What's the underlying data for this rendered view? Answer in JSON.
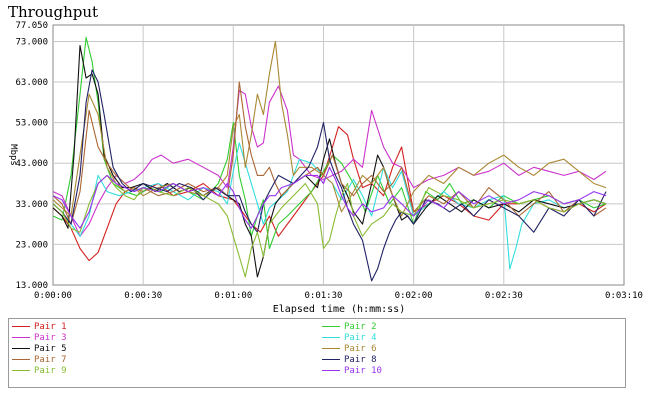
{
  "chart_data": {
    "type": "line",
    "title": "Throughput",
    "xlabel": "Elapsed time (h:mm:ss)",
    "ylabel": "Mbps",
    "xlim": [
      0,
      190
    ],
    "ylim": [
      13,
      77.05
    ],
    "yticks": [
      13.0,
      23.0,
      33.0,
      43.0,
      53.0,
      63.0,
      73.0,
      77.05
    ],
    "ytick_labels": [
      "13.000",
      "23.000",
      "33.000",
      "43.000",
      "53.000",
      "63.000",
      "73.000",
      "77.050"
    ],
    "xticks": [
      0,
      30,
      60,
      90,
      120,
      150,
      190
    ],
    "xtick_labels": [
      "0:00:00",
      "0:00:30",
      "0:01:00",
      "0:01:30",
      "0:02:00",
      "0:02:30",
      "0:03:10"
    ],
    "grid": true,
    "legend_position": "bottom",
    "series": [
      {
        "name": "Pair 1",
        "color": "#d42020",
        "x": [
          0,
          3,
          6,
          9,
          12,
          15,
          18,
          21,
          24,
          27,
          30,
          35,
          40,
          45,
          50,
          55,
          60,
          63,
          66,
          69,
          72,
          75,
          80,
          85,
          90,
          93,
          95,
          98,
          100,
          103,
          106,
          110,
          113,
          116,
          120,
          125,
          130,
          135,
          140,
          145,
          150,
          155,
          160,
          165,
          170,
          175,
          180,
          184
        ],
        "y": [
          32,
          30,
          27,
          22,
          19,
          21,
          27,
          33,
          36,
          37,
          36,
          38,
          35,
          36,
          38,
          35,
          34,
          31,
          28,
          26,
          30,
          25,
          30,
          35,
          40,
          47,
          52,
          50,
          44,
          37,
          38,
          35,
          42,
          47,
          31,
          33,
          35,
          33,
          30,
          29,
          33,
          33,
          34,
          32,
          31,
          33,
          31,
          33
        ]
      },
      {
        "name": "Pair 2",
        "color": "#33cc33",
        "x": [
          0,
          3,
          6,
          9,
          11,
          13,
          15,
          17,
          20,
          24,
          28,
          32,
          36,
          40,
          45,
          50,
          55,
          58,
          60,
          62,
          64,
          66,
          68,
          70,
          72,
          75,
          78,
          82,
          86,
          90,
          93,
          96,
          100,
          104,
          108,
          112,
          116,
          120,
          124,
          128,
          132,
          136,
          140,
          145,
          150,
          155,
          160,
          165,
          170,
          175,
          180,
          184
        ],
        "y": [
          30,
          29,
          40,
          60,
          74,
          68,
          58,
          44,
          38,
          36,
          35,
          37,
          36,
          38,
          36,
          34,
          38,
          44,
          53,
          40,
          34,
          25,
          30,
          34,
          22,
          28,
          30,
          33,
          36,
          41,
          45,
          43,
          38,
          31,
          40,
          33,
          37,
          28,
          36,
          34,
          38,
          33,
          34,
          32,
          35,
          33,
          34,
          35,
          33,
          34,
          32,
          33
        ]
      },
      {
        "name": "Pair 3",
        "color": "#cc33cc",
        "x": [
          0,
          3,
          6,
          9,
          12,
          15,
          18,
          21,
          24,
          27,
          30,
          33,
          36,
          40,
          45,
          50,
          55,
          58,
          60,
          62,
          64,
          66,
          68,
          70,
          72,
          75,
          78,
          80,
          82,
          86,
          90,
          93,
          96,
          100,
          103,
          106,
          110,
          113,
          116,
          120,
          125,
          130,
          135,
          140,
          145,
          150,
          155,
          160,
          165,
          170,
          175,
          180,
          184
        ],
        "y": [
          36,
          35,
          30,
          25,
          28,
          33,
          37,
          40,
          38,
          39,
          41,
          44,
          45,
          43,
          44,
          42,
          40,
          37,
          47,
          61,
          60,
          52,
          47,
          48,
          58,
          62,
          56,
          45,
          44,
          40,
          39,
          40,
          41,
          44,
          42,
          56,
          47,
          43,
          42,
          37,
          39,
          40,
          42,
          40,
          41,
          43,
          40,
          42,
          41,
          40,
          41,
          39,
          41
        ]
      },
      {
        "name": "Pair 4",
        "color": "#33dddd",
        "x": [
          0,
          3,
          6,
          9,
          12,
          15,
          18,
          22,
          26,
          30,
          35,
          40,
          45,
          50,
          55,
          58,
          60,
          62,
          64,
          66,
          68,
          70,
          72,
          75,
          78,
          82,
          86,
          90,
          93,
          96,
          100,
          103,
          106,
          110,
          113,
          116,
          120,
          125,
          130,
          135,
          140,
          145,
          150,
          152,
          154,
          156,
          160,
          165,
          170,
          175,
          180,
          184
        ],
        "y": [
          33,
          31,
          28,
          25,
          30,
          40,
          36,
          35,
          36,
          37,
          38,
          36,
          34,
          37,
          36,
          33,
          41,
          48,
          43,
          38,
          33,
          28,
          32,
          34,
          36,
          44,
          43,
          40,
          38,
          34,
          39,
          35,
          30,
          42,
          37,
          41,
          30,
          33,
          36,
          33,
          32,
          34,
          35,
          17,
          22,
          28,
          33,
          34,
          32,
          33,
          34,
          33
        ]
      },
      {
        "name": "Pair 5",
        "color": "#111111",
        "x": [
          0,
          3,
          5,
          7,
          9,
          11,
          13,
          15,
          17,
          20,
          23,
          26,
          30,
          34,
          38,
          42,
          46,
          50,
          54,
          58,
          62,
          64,
          66,
          68,
          70,
          72,
          74,
          76,
          80,
          84,
          88,
          90,
          92,
          94,
          96,
          98,
          100,
          103,
          106,
          108,
          110,
          112,
          114,
          116,
          118,
          120,
          124,
          128,
          132,
          136,
          140,
          145,
          150,
          155,
          160,
          165,
          170,
          175,
          180,
          184
        ],
        "y": [
          32,
          30,
          27,
          45,
          72,
          64,
          65,
          60,
          45,
          40,
          37,
          37,
          38,
          36,
          38,
          36,
          37,
          35,
          37,
          35,
          33,
          28,
          25,
          15,
          20,
          28,
          33,
          35,
          38,
          40,
          37,
          44,
          49,
          43,
          38,
          35,
          31,
          28,
          38,
          45,
          42,
          37,
          33,
          29,
          30,
          28,
          32,
          35,
          33,
          31,
          34,
          32,
          33,
          31,
          34,
          33,
          32,
          33,
          34,
          33
        ]
      },
      {
        "name": "Pair 6",
        "color": "#aa8833",
        "x": [
          0,
          3,
          6,
          9,
          12,
          15,
          18,
          21,
          24,
          27,
          30,
          35,
          40,
          45,
          50,
          55,
          58,
          60,
          62,
          64,
          66,
          68,
          70,
          72,
          74,
          76,
          78,
          80,
          82,
          86,
          90,
          93,
          96,
          100,
          103,
          106,
          110,
          113,
          116,
          120,
          125,
          130,
          135,
          140,
          145,
          150,
          155,
          160,
          165,
          170,
          175,
          180,
          184
        ],
        "y": [
          34,
          32,
          30,
          45,
          60,
          55,
          42,
          38,
          36,
          37,
          35,
          37,
          38,
          36,
          35,
          37,
          40,
          52,
          55,
          42,
          50,
          60,
          55,
          65,
          73,
          58,
          50,
          40,
          42,
          42,
          40,
          38,
          31,
          36,
          40,
          38,
          42,
          35,
          30,
          36,
          40,
          38,
          42,
          40,
          43,
          45,
          42,
          40,
          43,
          44,
          41,
          38,
          37
        ]
      },
      {
        "name": "Pair 7",
        "color": "#aa6633",
        "x": [
          0,
          3,
          6,
          9,
          12,
          15,
          18,
          21,
          24,
          27,
          30,
          35,
          40,
          45,
          50,
          55,
          58,
          60,
          62,
          64,
          66,
          68,
          70,
          72,
          74,
          76,
          80,
          84,
          88,
          90,
          93,
          96,
          100,
          103,
          106,
          110,
          113,
          116,
          120,
          125,
          130,
          135,
          140,
          145,
          150,
          155,
          160,
          165,
          170,
          175,
          180,
          184
        ],
        "y": [
          35,
          33,
          28,
          36,
          56,
          47,
          43,
          40,
          38,
          36,
          37,
          35,
          36,
          38,
          36,
          37,
          35,
          45,
          63,
          52,
          45,
          40,
          40,
          42,
          38,
          35,
          38,
          40,
          42,
          40,
          45,
          38,
          35,
          38,
          40,
          36,
          38,
          42,
          31,
          35,
          33,
          36,
          32,
          37,
          34,
          30,
          33,
          36,
          31,
          34,
          30,
          32
        ]
      },
      {
        "name": "Pair 8",
        "color": "#222266",
        "x": [
          0,
          3,
          6,
          9,
          11,
          13,
          15,
          17,
          20,
          23,
          26,
          30,
          34,
          38,
          42,
          46,
          50,
          54,
          58,
          62,
          64,
          66,
          68,
          70,
          72,
          75,
          80,
          85,
          88,
          90,
          92,
          94,
          96,
          98,
          100,
          103,
          106,
          108,
          110,
          112,
          114,
          116,
          118,
          120,
          124,
          128,
          132,
          136,
          140,
          145,
          150,
          155,
          160,
          165,
          170,
          175,
          180,
          184
        ],
        "y": [
          33,
          31,
          28,
          40,
          58,
          66,
          63,
          55,
          42,
          38,
          36,
          38,
          37,
          36,
          38,
          37,
          34,
          37,
          35,
          35,
          31,
          28,
          26,
          33,
          36,
          40,
          38,
          42,
          47,
          53,
          44,
          40,
          37,
          32,
          28,
          24,
          14,
          17,
          22,
          26,
          29,
          31,
          30,
          28,
          34,
          33,
          31,
          33,
          30,
          34,
          32,
          30,
          26,
          32,
          30,
          34,
          30,
          36
        ]
      },
      {
        "name": "Pair 9",
        "color": "#88bb33",
        "x": [
          0,
          3,
          6,
          9,
          12,
          15,
          18,
          21,
          24,
          27,
          30,
          35,
          40,
          45,
          50,
          55,
          58,
          60,
          62,
          64,
          66,
          68,
          70,
          72,
          74,
          76,
          80,
          84,
          88,
          90,
          92,
          94,
          96,
          98,
          100,
          103,
          106,
          110,
          113,
          116,
          120,
          125,
          130,
          135,
          140,
          145,
          150,
          155,
          160,
          165,
          170,
          175,
          180,
          184
        ],
        "y": [
          33,
          31,
          27,
          26,
          33,
          38,
          40,
          37,
          35,
          34,
          37,
          36,
          35,
          37,
          35,
          33,
          30,
          25,
          20,
          15,
          22,
          26,
          20,
          28,
          30,
          32,
          35,
          38,
          33,
          22,
          24,
          30,
          35,
          38,
          30,
          25,
          28,
          30,
          33,
          31,
          30,
          37,
          35,
          34,
          32,
          33,
          34,
          33,
          34,
          32,
          31,
          33,
          34,
          33
        ]
      },
      {
        "name": "Pair 10",
        "color": "#9933ee",
        "x": [
          0,
          3,
          6,
          9,
          12,
          15,
          18,
          21,
          24,
          27,
          30,
          35,
          40,
          45,
          50,
          55,
          58,
          60,
          62,
          64,
          66,
          68,
          70,
          72,
          74,
          76,
          80,
          84,
          88,
          90,
          92,
          94,
          96,
          98,
          100,
          103,
          106,
          110,
          113,
          116,
          120,
          125,
          130,
          135,
          140,
          145,
          150,
          155,
          160,
          165,
          170,
          175,
          180,
          184
        ],
        "y": [
          35,
          34,
          30,
          27,
          31,
          38,
          40,
          38,
          37,
          36,
          37,
          36,
          38,
          36,
          37,
          35,
          38,
          36,
          32,
          29,
          27,
          30,
          33,
          35,
          35,
          37,
          38,
          40,
          40,
          38,
          42,
          39,
          35,
          32,
          30,
          33,
          31,
          32,
          35,
          33,
          30,
          34,
          32,
          36,
          33,
          35,
          33,
          34,
          36,
          35,
          33,
          34,
          36,
          35
        ]
      }
    ]
  }
}
